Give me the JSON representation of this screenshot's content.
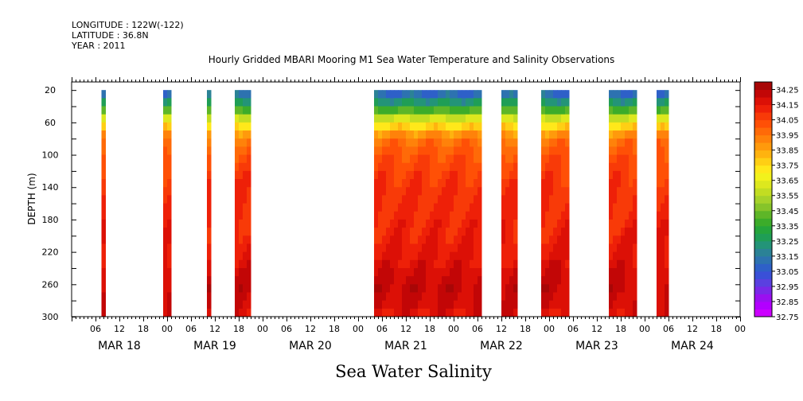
{
  "header": {
    "longitude": "LONGITUDE : 122W(-122)",
    "latitude": "LATITUDE : 36.8N",
    "year": "YEAR : 2011"
  },
  "chart_data": {
    "type": "heatmap",
    "title": "Hourly Gridded MBARI Mooring M1 Sea Water Temperature and Salinity Observations",
    "footer": "Sea Water Salinity",
    "xlabel": "",
    "ylabel": "DEPTH (m)",
    "x_range_hours": [
      0,
      168
    ],
    "ylim": [
      300,
      10
    ],
    "y_ticks": [
      20,
      60,
      100,
      140,
      180,
      220,
      260,
      300
    ],
    "x_hour_ticks": [
      "06",
      "12",
      "18",
      "00",
      "06",
      "12",
      "18",
      "00",
      "06",
      "12",
      "18",
      "00",
      "06",
      "12",
      "18",
      "00",
      "06",
      "12",
      "18",
      "00",
      "06",
      "12",
      "18",
      "00",
      "06",
      "12",
      "18",
      "00"
    ],
    "day_labels": [
      "MAR 18",
      "MAR 19",
      "MAR 20",
      "MAR 21",
      "MAR 22",
      "MAR 23",
      "MAR 24"
    ],
    "colorbar": {
      "levels": [
        32.75,
        32.8,
        32.85,
        32.9,
        32.95,
        33.0,
        33.05,
        33.1,
        33.15,
        33.2,
        33.25,
        33.3,
        33.35,
        33.4,
        33.45,
        33.5,
        33.55,
        33.6,
        33.65,
        33.7,
        33.75,
        33.8,
        33.85,
        33.9,
        33.95,
        34.0,
        34.05,
        34.1,
        34.15,
        34.2,
        34.25,
        34.3
      ],
      "tick_labels": [
        "34.25",
        "34.15",
        "34.05",
        "33.95",
        "33.85",
        "33.75",
        "33.65",
        "33.55",
        "33.45",
        "33.35",
        "33.25",
        "33.15",
        "33.05",
        "32.95",
        "32.85",
        "32.75"
      ],
      "colors": [
        "#cc00ff",
        "#b200ff",
        "#9a10f0",
        "#7a28e8",
        "#5a40e0",
        "#3a50d8",
        "#2e60c8",
        "#2d72b0",
        "#2b8296",
        "#239478",
        "#1f9e56",
        "#25a53c",
        "#3cac2a",
        "#5eb628",
        "#86c42a",
        "#a6d22a",
        "#c2dd22",
        "#dde81e",
        "#f2f21c",
        "#ffe81a",
        "#ffcf14",
        "#ffb30f",
        "#ff9a0c",
        "#ff820a",
        "#ff6a08",
        "#ff5006",
        "#f83a08",
        "#ee2008",
        "#dc1006",
        "#c20606",
        "#a80606"
      ]
    },
    "observation_windows_hours": [
      [
        7.5,
        8.5
      ],
      [
        23,
        25
      ],
      [
        34,
        35
      ],
      [
        41,
        45
      ],
      [
        76,
        103
      ],
      [
        108,
        112
      ],
      [
        118,
        125
      ],
      [
        135,
        142
      ],
      [
        147,
        150
      ]
    ],
    "depth_profile": [
      {
        "depth": 20,
        "salinity": 33.05
      },
      {
        "depth": 40,
        "salinity": 33.3
      },
      {
        "depth": 60,
        "salinity": 33.7
      },
      {
        "depth": 80,
        "salinity": 33.95
      },
      {
        "depth": 100,
        "salinity": 34.02
      },
      {
        "depth": 120,
        "salinity": 34.06
      },
      {
        "depth": 140,
        "salinity": 34.09
      },
      {
        "depth": 160,
        "salinity": 34.1
      },
      {
        "depth": 180,
        "salinity": 34.11
      },
      {
        "depth": 200,
        "salinity": 34.13
      },
      {
        "depth": 220,
        "salinity": 34.15
      },
      {
        "depth": 240,
        "salinity": 34.18
      },
      {
        "depth": 260,
        "salinity": 34.22
      },
      {
        "depth": 280,
        "salinity": 34.2
      },
      {
        "depth": 300,
        "salinity": 34.17
      }
    ]
  }
}
